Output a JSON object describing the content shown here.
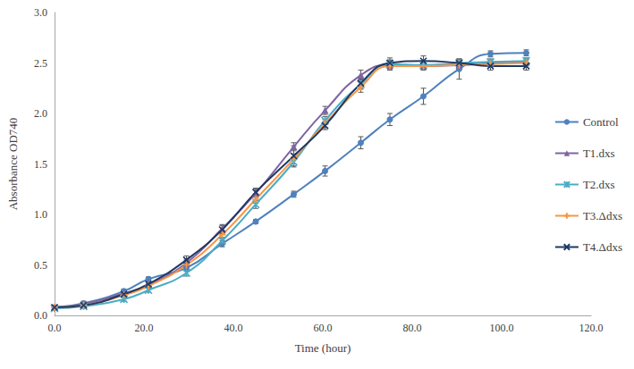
{
  "chart_data": {
    "type": "line",
    "x_label": "Time (hour)",
    "y_label": "Absorbance OD740",
    "x": [
      0,
      6.5,
      15.5,
      21,
      29.5,
      37.5,
      45,
      53.5,
      60.5,
      68.5,
      75,
      82.5,
      90.5,
      97.5,
      105.5
    ],
    "series": [
      {
        "name": "Control",
        "color": "#4F81BD",
        "marker": "circle",
        "values": [
          0.08,
          0.12,
          0.24,
          0.36,
          0.47,
          0.71,
          0.93,
          1.2,
          1.43,
          1.71,
          1.94,
          2.17,
          2.44,
          2.59,
          2.6
        ],
        "errors": [
          0.02,
          0.02,
          0.02,
          0.02,
          0.03,
          0.03,
          0.02,
          0.03,
          0.05,
          0.06,
          0.06,
          0.08,
          0.1,
          0.03,
          0.03
        ]
      },
      {
        "name": "T1.dxs",
        "color": "#8064A2",
        "marker": "triangle",
        "values": [
          0.08,
          0.11,
          0.22,
          0.3,
          0.52,
          0.86,
          1.21,
          1.67,
          2.03,
          2.38,
          2.48,
          2.47,
          2.48,
          2.5,
          2.51
        ],
        "errors": [
          0.02,
          0.02,
          0.02,
          0.02,
          0.03,
          0.04,
          0.04,
          0.04,
          0.04,
          0.05,
          0.04,
          0.04,
          0.03,
          0.03,
          0.03
        ]
      },
      {
        "name": "T2.dxs",
        "color": "#4BACC6",
        "marker": "asterisk",
        "values": [
          0.07,
          0.09,
          0.16,
          0.25,
          0.42,
          0.74,
          1.1,
          1.52,
          1.93,
          2.29,
          2.49,
          2.48,
          2.5,
          2.51,
          2.52
        ],
        "errors": [
          0.02,
          0.02,
          0.02,
          0.02,
          0.03,
          0.03,
          0.04,
          0.05,
          0.04,
          0.05,
          0.04,
          0.04,
          0.03,
          0.03,
          0.03
        ]
      },
      {
        "name": "T3.Δdxs",
        "color": "#F79646",
        "marker": "plus",
        "values": [
          0.08,
          0.1,
          0.2,
          0.29,
          0.5,
          0.8,
          1.15,
          1.55,
          1.9,
          2.26,
          2.47,
          2.47,
          2.48,
          2.49,
          2.5
        ],
        "errors": [
          0.02,
          0.02,
          0.02,
          0.02,
          0.03,
          0.03,
          0.04,
          0.05,
          0.04,
          0.05,
          0.04,
          0.03,
          0.03,
          0.03,
          0.03
        ]
      },
      {
        "name": "T4.Δdxs",
        "color": "#1F3864",
        "marker": "x",
        "values": [
          0.08,
          0.1,
          0.21,
          0.31,
          0.55,
          0.85,
          1.22,
          1.58,
          1.88,
          2.3,
          2.5,
          2.52,
          2.5,
          2.47,
          2.47
        ],
        "errors": [
          0.02,
          0.02,
          0.02,
          0.02,
          0.04,
          0.04,
          0.04,
          0.1,
          0.04,
          0.05,
          0.05,
          0.05,
          0.04,
          0.04,
          0.04
        ]
      }
    ],
    "xlim": [
      0,
      120
    ],
    "xticks": [
      {
        "value": 0,
        "label": "0.0"
      },
      {
        "value": 20,
        "label": "20.0"
      },
      {
        "value": 40,
        "label": "40.0"
      },
      {
        "value": 60,
        "label": "60.0"
      },
      {
        "value": 80,
        "label": "80.0"
      },
      {
        "value": 100,
        "label": "100.0"
      },
      {
        "value": 120,
        "label": "120.0"
      }
    ],
    "ylim": [
      0,
      3
    ],
    "yticks": [
      {
        "value": 0,
        "label": "0.0"
      },
      0.5,
      {
        "value": 1,
        "label": "1.0"
      },
      1.5,
      {
        "value": 2,
        "label": "2.0"
      },
      2.5,
      {
        "value": 3,
        "label": "3.0"
      }
    ],
    "grid": false,
    "legend": "right"
  }
}
